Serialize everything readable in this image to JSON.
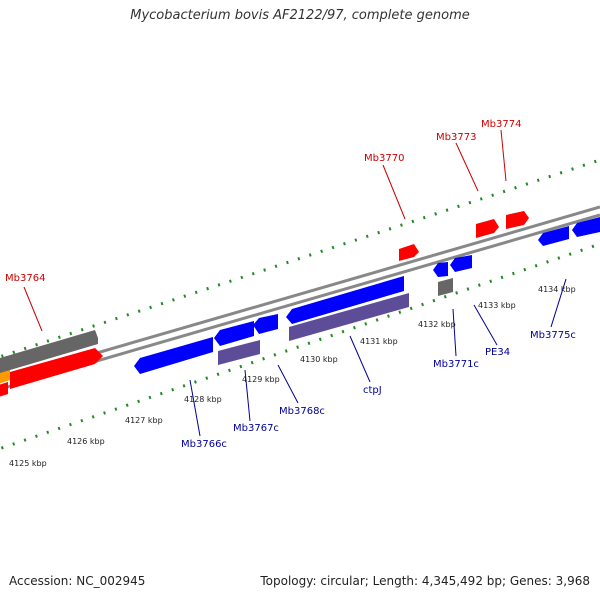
{
  "title": "Mycobacterium bovis AF2122/97, complete genome",
  "footer": {
    "accession": "Accession: NC_002945",
    "stats": "Topology: circular; Length: 4,345,492 bp; Genes: 3,968"
  },
  "colors": {
    "forward_gene": "#ff0000",
    "reverse_gene": "#0000ff",
    "other_forward": "#666666",
    "other_reverse": "#5d4d99",
    "tick": "#228b22",
    "backbone": "#888888",
    "label_forward": "#cc0000",
    "label_reverse": "#000099"
  },
  "scale_labels": [
    "4125 kbp",
    "4126 kbp",
    "4127 kbp",
    "4128 kbp",
    "4129 kbp",
    "4130 kbp",
    "4131 kbp",
    "4132 kbp",
    "4133 kbp",
    "4134 kbp"
  ],
  "forward_labels": [
    "Mb3764",
    "Mb3770",
    "Mb3773",
    "Mb3774"
  ],
  "reverse_labels": [
    "Mb3766c",
    "Mb3767c",
    "Mb3768c",
    "ctpJ",
    "Mb3771c",
    "PE34",
    "Mb3775c"
  ]
}
